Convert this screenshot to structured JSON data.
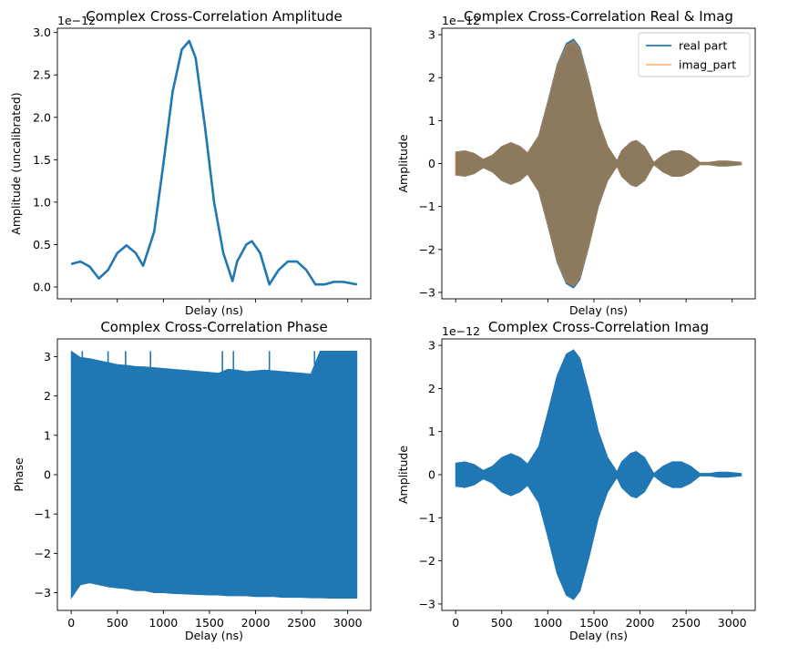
{
  "chart_data": [
    {
      "type": "line",
      "title": "Complex Cross-Correlation Amplitude",
      "xlabel": "Delay (ns)",
      "ylabel": "Amplitude (uncalibrated)",
      "offset_text": "1e−12",
      "xlim": [
        -150,
        3250
      ],
      "ylim": [
        -1.4e-13,
        3.05e-12
      ],
      "xticks_labeled": false,
      "yticks": [
        0,
        5e-13,
        1e-12,
        1.5e-12,
        2e-12,
        2.5e-12,
        3e-12
      ],
      "ytick_labels": [
        "0.0",
        "0.5",
        "1.0",
        "1.5",
        "2.0",
        "2.5",
        "3.0"
      ],
      "series": [
        {
          "color": "#1f77b4",
          "x": [
            0,
            100,
            200,
            300,
            400,
            500,
            600,
            700,
            780,
            900,
            1000,
            1100,
            1200,
            1280,
            1350,
            1450,
            1550,
            1650,
            1750,
            1800,
            1900,
            1960,
            2050,
            2150,
            2250,
            2350,
            2450,
            2550,
            2650,
            2750,
            2850,
            2950,
            3050,
            3100
          ],
          "y": [
            2.7e-13,
            3e-13,
            2.4e-13,
            1e-13,
            2e-13,
            4e-13,
            4.9e-13,
            4e-13,
            2.5e-13,
            6.5e-13,
            1.45e-12,
            2.3e-12,
            2.8e-12,
            2.9e-12,
            2.7e-12,
            1.9e-12,
            1e-12,
            4e-13,
            7e-14,
            3e-13,
            5e-13,
            5.4e-13,
            4e-13,
            3e-14,
            2e-13,
            3e-13,
            3e-13,
            2e-13,
            3e-14,
            3e-14,
            6e-14,
            6e-14,
            4e-14,
            3e-14
          ]
        }
      ]
    },
    {
      "type": "area",
      "title": "Complex Cross-Correlation Real & Imag",
      "xlabel": "Delay (ns)",
      "ylabel": "Amplitude",
      "offset_text": "1e−12",
      "xlim": [
        -150,
        3250
      ],
      "ylim": [
        -3.15e-12,
        3.15e-12
      ],
      "xticks_labeled": false,
      "yticks": [
        -3e-12,
        -2e-12,
        -1e-12,
        0,
        1e-12,
        2e-12,
        3e-12
      ],
      "ytick_labels": [
        "−3",
        "−2",
        "−1",
        "0",
        "1",
        "2",
        "3"
      ],
      "legend": {
        "placement": "upper-right",
        "entries": [
          {
            "label": "real part",
            "color": "#1f77b4"
          },
          {
            "label": "imag_part",
            "color": "#ff7f0e"
          }
        ]
      },
      "series": [
        {
          "name": "real part",
          "color": "#1f77b4",
          "envelope": "amplitude"
        },
        {
          "name": "imag_part",
          "color": "#ff7f0e",
          "envelope": "amplitude",
          "alpha": 0.55
        }
      ]
    },
    {
      "type": "area",
      "title": "Complex Cross-Correlation Phase",
      "xlabel": "Delay (ns)",
      "ylabel": "Phase",
      "xlim": [
        -150,
        3250
      ],
      "ylim": [
        -3.45,
        3.45
      ],
      "xticks": [
        0,
        500,
        1000,
        1500,
        2000,
        2500,
        3000
      ],
      "xtick_labels": [
        "0",
        "500",
        "1000",
        "1500",
        "2000",
        "2500",
        "3000"
      ],
      "yticks": [
        -3,
        -2,
        -1,
        0,
        1,
        2,
        3
      ],
      "ytick_labels": [
        "−3",
        "−2",
        "−1",
        "0",
        "1",
        "2",
        "3"
      ],
      "series": [
        {
          "color": "#1f77b4",
          "x": [
            0,
            100,
            200,
            300,
            400,
            500,
            600,
            700,
            800,
            900,
            1000,
            1100,
            1200,
            1300,
            1400,
            1500,
            1600,
            1700,
            1800,
            1900,
            2000,
            2100,
            2200,
            2300,
            2400,
            2500,
            2600,
            2700,
            2800,
            2900,
            3000,
            3100
          ],
          "upper": [
            3.14,
            2.98,
            2.95,
            2.9,
            2.85,
            2.8,
            2.78,
            2.75,
            2.74,
            2.72,
            2.7,
            2.68,
            2.66,
            2.64,
            2.62,
            2.6,
            2.58,
            2.68,
            2.66,
            2.62,
            2.64,
            2.66,
            2.64,
            2.62,
            2.6,
            2.58,
            2.56,
            3.14,
            3.14,
            3.14,
            3.14,
            3.14
          ],
          "lower": [
            -3.14,
            -2.8,
            -2.75,
            -2.8,
            -2.85,
            -2.88,
            -2.9,
            -2.95,
            -2.95,
            -3.0,
            -3.0,
            -3.02,
            -3.03,
            -3.04,
            -3.05,
            -3.06,
            -3.06,
            -3.08,
            -3.08,
            -3.08,
            -3.1,
            -3.1,
            -3.1,
            -3.12,
            -3.12,
            -3.12,
            -3.13,
            -3.13,
            -3.14,
            -3.14,
            -3.14,
            -3.14
          ]
        }
      ]
    },
    {
      "type": "area",
      "title": "Complex Cross-Correlation Imag",
      "xlabel": "Delay (ns)",
      "ylabel": "Amplitude",
      "offset_text": "1e−12",
      "xlim": [
        -150,
        3250
      ],
      "ylim": [
        -3.15e-12,
        3.15e-12
      ],
      "xticks": [
        0,
        500,
        1000,
        1500,
        2000,
        2500,
        3000
      ],
      "xtick_labels": [
        "0",
        "500",
        "1000",
        "1500",
        "2000",
        "2500",
        "3000"
      ],
      "yticks": [
        -3e-12,
        -2e-12,
        -1e-12,
        0,
        1e-12,
        2e-12,
        3e-12
      ],
      "ytick_labels": [
        "−3",
        "−2",
        "−1",
        "0",
        "1",
        "2",
        "3"
      ],
      "series": [
        {
          "color": "#1f77b4",
          "envelope": "amplitude"
        }
      ]
    }
  ]
}
